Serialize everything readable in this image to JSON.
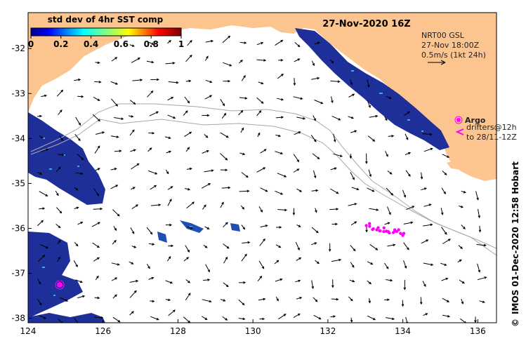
{
  "map": {
    "title": "27-Nov-2020 16Z",
    "x_ticks": [
      "124",
      "126",
      "128",
      "130",
      "132",
      "134",
      "136"
    ],
    "y_ticks": [
      "-32",
      "-33",
      "-34",
      "-35",
      "-36",
      "-37",
      "-38"
    ],
    "lon_range": [
      124,
      136.5
    ],
    "lat_range": [
      -38.1,
      -31.2
    ],
    "colors": {
      "land": "#FCC590",
      "water": "#ffffff",
      "vectors": "#000000",
      "argo": "#ff00ff",
      "bathymetry": "#a8a8a8",
      "sst_deep": "#1f2f9a"
    }
  },
  "colorbar": {
    "title": "std dev of 4hr SST comp",
    "tick_labels": [
      "0",
      "0.2",
      "0.4",
      "0.6",
      "0.8",
      "1"
    ],
    "range": [
      0,
      1
    ]
  },
  "current_legend": {
    "line1": "NRT00 GSL",
    "line2": "27-Nov 18:00Z",
    "line3": "0.5m/s (1kt 24h)"
  },
  "argo_legend": {
    "label": "Argo",
    "line2": "drifters@12h",
    "line3": "to 28/11-12Z"
  },
  "credit": {
    "copyright_icon": "©",
    "text": "IMOS 01-Dec-2020 12:58 Hobart"
  }
}
